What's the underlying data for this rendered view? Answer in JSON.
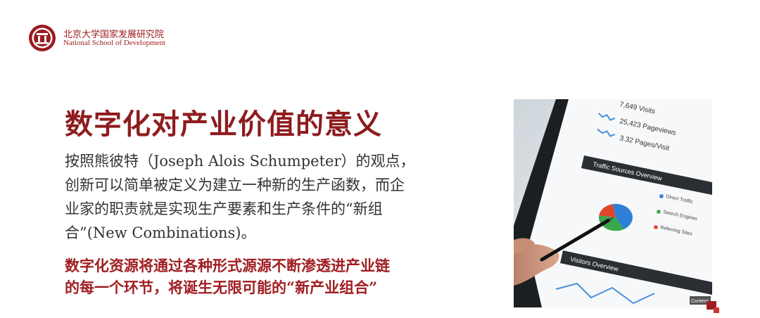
{
  "header": {
    "org_cn": "北京大学国家发展研究院",
    "org_en": "National School of Development"
  },
  "title": "数字化对产业价值的意义",
  "body_lines": [
    "按照熊彼特（Joseph Alois Schumpeter）的观点，",
    "创新可以简单被定义为建立一种新的生产函数，而企",
    "业家的职责就是实现生产要素和生产条件的“新组",
    "合”(New Combinations)。"
  ],
  "highlight_lines": [
    "数字化资源将通过各种形式源源不断渗透进产业链",
    "的每一个环节，将诞生无限可能的“新产业组合”"
  ],
  "photo": {
    "stats": [
      "7,649 Visits",
      "25,423 Pageviews",
      "3.32 Pages/Visit"
    ],
    "panel1_title": "Traffic Sources Overview",
    "legend": [
      "Direct Traffic",
      "Search Engines",
      "Referring Sites"
    ],
    "legend_colors": [
      "#2f7fd6",
      "#3aa84a",
      "#e0452a"
    ],
    "pie_values": [
      45,
      35,
      20
    ],
    "panel2_title": "Visitors Overview",
    "button": "Content"
  },
  "colors": {
    "brand": "#9b1b1f",
    "title": "#8e1c1f",
    "highlight": "#a01e22"
  }
}
